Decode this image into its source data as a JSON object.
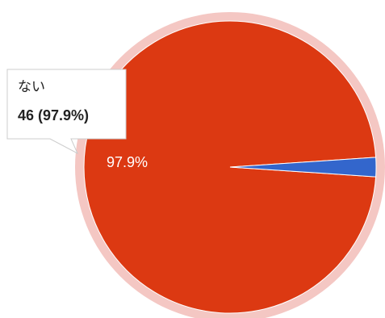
{
  "chart_data": {
    "type": "pie",
    "slices": [
      {
        "name": "ない",
        "value": 46,
        "percent": 97.9,
        "color": "#dc3912",
        "label": "97.9%"
      },
      {
        "name": "",
        "value": 1,
        "percent": 2.1,
        "color": "#3366cc",
        "label": ""
      }
    ],
    "highlighted_slice": 0,
    "highlight_ring_color": "#f4c7c3",
    "tooltip": {
      "title": "ない",
      "value": "46 (97.9%)"
    },
    "title": "",
    "legend": "none"
  }
}
